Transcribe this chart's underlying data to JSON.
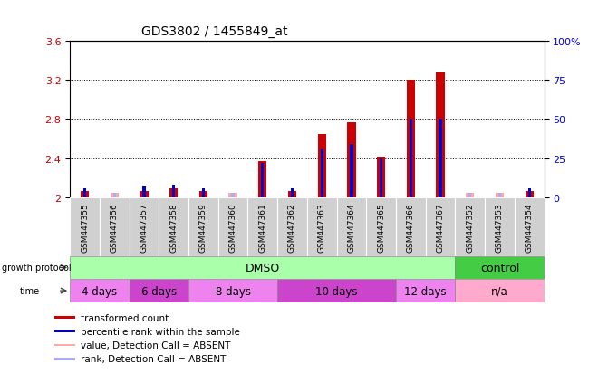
{
  "title": "GDS3802 / 1455849_at",
  "samples": [
    "GSM447355",
    "GSM447356",
    "GSM447357",
    "GSM447358",
    "GSM447359",
    "GSM447360",
    "GSM447361",
    "GSM447362",
    "GSM447363",
    "GSM447364",
    "GSM447365",
    "GSM447366",
    "GSM447367",
    "GSM447352",
    "GSM447353",
    "GSM447354"
  ],
  "red_values": [
    2.07,
    2.05,
    2.07,
    2.1,
    2.07,
    2.05,
    2.37,
    2.07,
    2.65,
    2.77,
    2.42,
    3.2,
    3.27,
    2.05,
    2.05,
    2.07
  ],
  "blue_values": [
    2.1,
    2.05,
    2.12,
    2.13,
    2.1,
    2.05,
    2.35,
    2.1,
    2.5,
    2.55,
    2.4,
    2.8,
    2.8,
    2.05,
    2.05,
    2.1
  ],
  "absent_red": [
    false,
    true,
    false,
    false,
    false,
    true,
    false,
    false,
    false,
    false,
    false,
    false,
    false,
    true,
    true,
    false
  ],
  "absent_blue": [
    false,
    true,
    false,
    false,
    false,
    true,
    false,
    false,
    false,
    false,
    false,
    false,
    false,
    true,
    true,
    false
  ],
  "ylim_left": [
    2.0,
    3.6
  ],
  "ylim_right": [
    0,
    100
  ],
  "yticks_left": [
    2.0,
    2.4,
    2.8,
    3.2,
    3.6
  ],
  "yticks_right": [
    0,
    25,
    50,
    75,
    100
  ],
  "ytick_labels_left": [
    "2",
    "2.4",
    "2.8",
    "3.2",
    "3.6"
  ],
  "ytick_labels_right": [
    "0",
    "25",
    "50",
    "75",
    "100%"
  ],
  "bar_color_red": "#cc0000",
  "bar_color_blue": "#0000cc",
  "bar_color_red_absent": "#ffaaaa",
  "bar_color_blue_absent": "#aaaaff",
  "label_color_left": "#cc0000",
  "label_color_right": "#0000cc",
  "dmso_color": "#aaffaa",
  "control_color": "#44cc44",
  "time_colors": [
    "#ee82ee",
    "#cc44cc",
    "#ee82ee",
    "#cc44cc",
    "#ee82ee",
    "#ffaacc"
  ],
  "time_groups": [
    {
      "label": "4 days",
      "start": 0,
      "end": 2
    },
    {
      "label": "6 days",
      "start": 2,
      "end": 4
    },
    {
      "label": "8 days",
      "start": 4,
      "end": 7
    },
    {
      "label": "10 days",
      "start": 7,
      "end": 11
    },
    {
      "label": "12 days",
      "start": 11,
      "end": 13
    },
    {
      "label": "n/a",
      "start": 13,
      "end": 16
    }
  ]
}
